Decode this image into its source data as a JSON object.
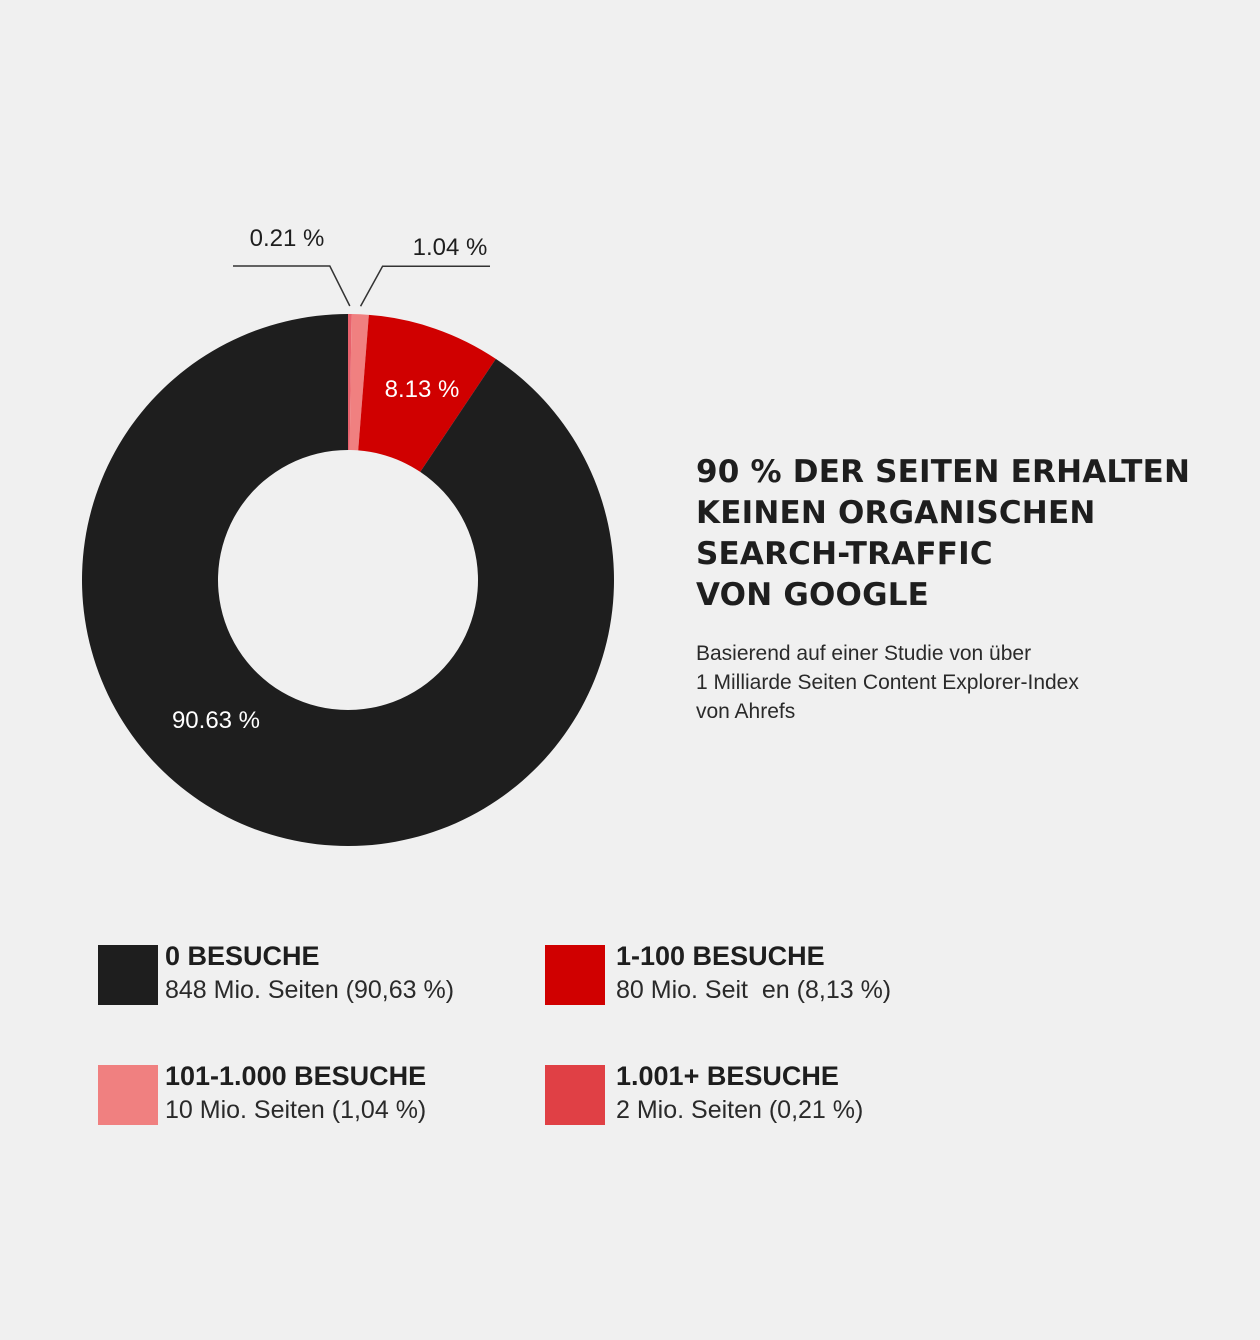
{
  "chart_data": {
    "type": "pie",
    "donut": true,
    "start_angle_deg": 0,
    "direction": "clockwise-from-top",
    "slices": [
      {
        "label": "1.001+ BESUCHE",
        "value": 0.21,
        "display": "0.21 %",
        "color": "#e8616c",
        "label_position": "outside"
      },
      {
        "label": "101-1.000 BESUCHE",
        "value": 1.04,
        "display": "1.04 %",
        "color": "#f08080",
        "label_position": "outside"
      },
      {
        "label": "1-100 BESUCHE",
        "value": 8.13,
        "display": "8.13 %",
        "color": "#d00000",
        "label_position": "inside"
      },
      {
        "label": "0 BESUCHE",
        "value": 90.63,
        "display": "90.63 %",
        "color": "#1e1e1e",
        "label_position": "inside"
      }
    ],
    "title": [
      "90 % DER SEITEN ERHALTEN",
      "KEINEN ORGANISCHEN",
      "SEARCH-TRAFFIC",
      "VON GOOGLE"
    ],
    "subtitle": [
      "Basierend auf einer Studie von über",
      "1 Milliarde Seiten Content Explorer-Index",
      "von Ahrefs"
    ],
    "legend": [
      {
        "title": "0 BESUCHE",
        "detail": "848 Mio. Seiten (90,63 %)",
        "color": "#1e1e1e"
      },
      {
        "title": "1-100 BESUCHE",
        "detail": "80 Mio. Seit  en (8,13 %)",
        "color": "#d00000"
      },
      {
        "title": "101-1.000 BESUCHE",
        "detail": "10 Mio. Seiten (1,04 %)",
        "color": "#f08080"
      },
      {
        "title": "1.001+ BESUCHE",
        "detail": "2 Mio. Seiten (0,21 %)",
        "color": "#e04045"
      }
    ],
    "legend_placement": "bottom"
  }
}
